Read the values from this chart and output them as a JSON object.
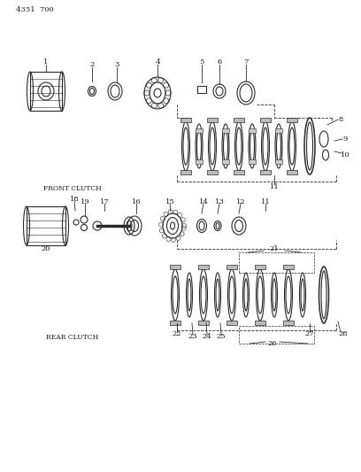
{
  "title": "4351  700",
  "background_color": "#ffffff",
  "line_color": "#2a2a2a",
  "text_color": "#1a1a1a",
  "front_clutch_label": "FRONT CLUTCH",
  "rear_clutch_label": "REAR CLUTCH"
}
